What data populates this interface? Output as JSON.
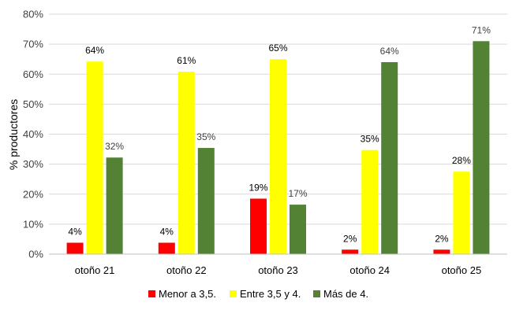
{
  "chart_data": {
    "type": "bar",
    "title": "",
    "xlabel": "",
    "ylabel": "% productores",
    "ylim": [
      0,
      80
    ],
    "ytick_step": 10,
    "ytick_labels": [
      "0%",
      "10%",
      "20%",
      "30%",
      "40%",
      "50%",
      "60%",
      "70%",
      "80%"
    ],
    "grid": true,
    "legend_position": "bottom",
    "categories": [
      "otoño 21",
      "otoño 22",
      "otoño 23",
      "otoño 24",
      "otoño 25"
    ],
    "series": [
      {
        "name": "Menor a 3,5.",
        "color": "#ff0000",
        "values": [
          4,
          4,
          19,
          2,
          2
        ],
        "labels": [
          "4%",
          "4%",
          "19%",
          "2%",
          "2%"
        ],
        "plotted": [
          3.8,
          3.8,
          18.5,
          1.5,
          1.5
        ]
      },
      {
        "name": "Entre 3,5 y 4.",
        "color": "#ffff00",
        "values": [
          64,
          61,
          65,
          35,
          28
        ],
        "labels": [
          "64%",
          "61%",
          "65%",
          "35%",
          "28%"
        ],
        "plotted": [
          64.2,
          60.8,
          65.0,
          34.7,
          27.5
        ]
      },
      {
        "name": "Más de 4.",
        "color": "#548235",
        "values": [
          32,
          35,
          17,
          64,
          71
        ],
        "labels": [
          "32%",
          "35%",
          "17%",
          "64%",
          "71%"
        ],
        "plotted": [
          32.2,
          35.4,
          16.5,
          64.0,
          71.0
        ]
      }
    ]
  }
}
